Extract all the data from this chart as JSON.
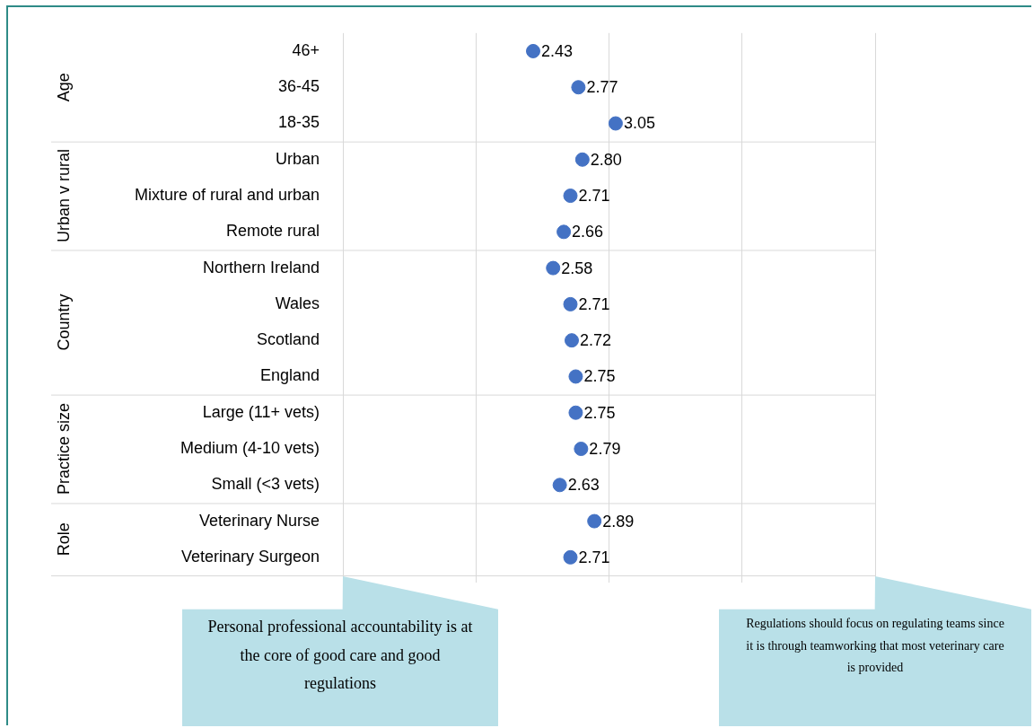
{
  "chart_data": {
    "type": "scatter",
    "orientation": "horizontal",
    "categories": [
      "46+",
      "36-45",
      "18-35",
      "Urban",
      "Mixture of rural and urban",
      "Remote rural",
      "Northern Ireland",
      "Wales",
      "Scotland",
      "England",
      "Large (11+ vets)",
      "Medium (4-10 vets)",
      "Small (<3 vets)",
      "Veterinary Nurse",
      "Veterinary Surgeon"
    ],
    "values": [
      2.43,
      2.77,
      3.05,
      2.8,
      2.71,
      2.66,
      2.58,
      2.71,
      2.72,
      2.75,
      2.75,
      2.79,
      2.63,
      2.89,
      2.71
    ],
    "value_labels": [
      "2.43",
      "2.77",
      "3.05",
      "2.80",
      "2.71",
      "2.66",
      "2.58",
      "2.71",
      "2.72",
      "2.75",
      "2.75",
      "2.79",
      "2.63",
      "2.89",
      "2.71"
    ],
    "color": "#4472c4",
    "xlim": [
      1,
      5
    ],
    "xticks": [
      {
        "value": 1,
        "label": null
      },
      {
        "value": 2,
        "label": null
      },
      {
        "value": 3,
        "label": null
      },
      {
        "value": 4,
        "label": null
      },
      {
        "value": 5,
        "label": null
      }
    ],
    "grid": "x",
    "legend": false,
    "tick_labels": "y",
    "marker": "circle",
    "annotations": [
      "Age",
      "Urban v rural",
      "Country",
      "Practice size",
      "Role",
      "Personal professional accountability is at the core of good care and good regulations",
      "Regulations should focus on regulating teams since it is through teamworking that most veterinary care is provided"
    ]
  }
}
